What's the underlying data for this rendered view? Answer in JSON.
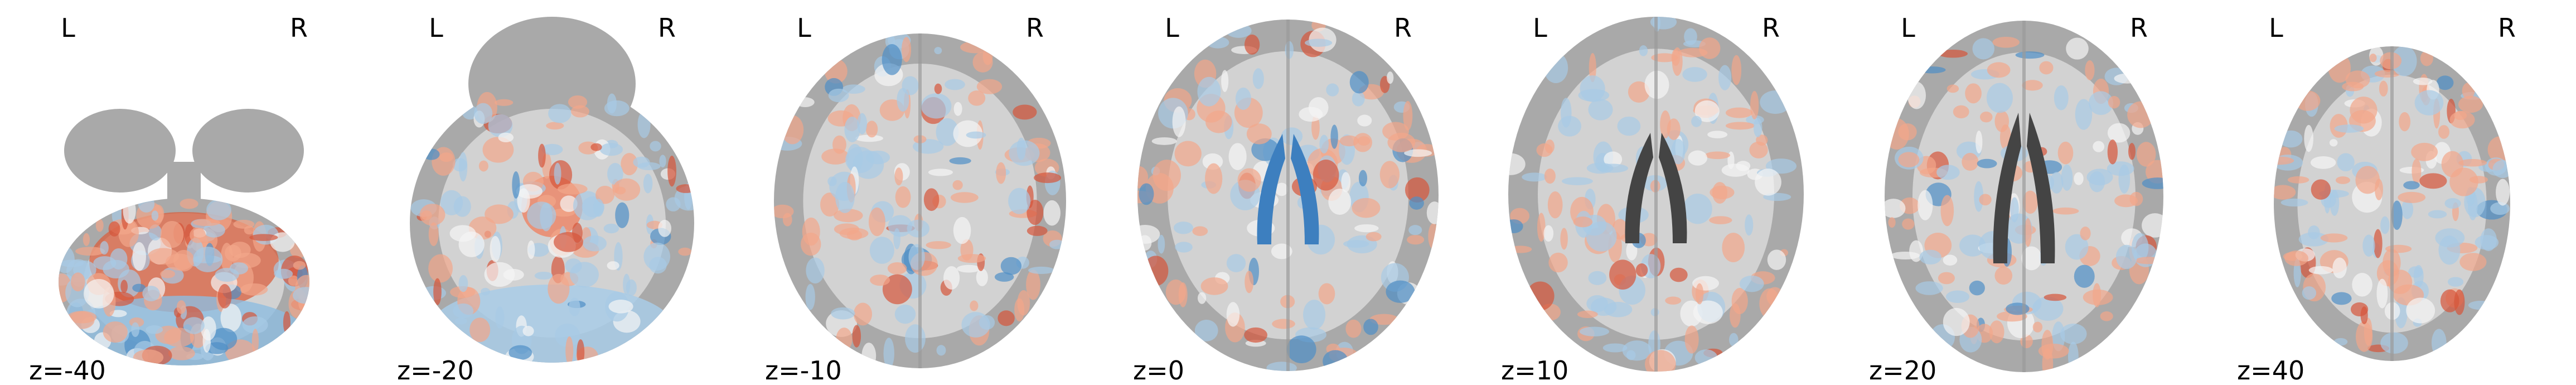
{
  "panels": [
    {
      "left": "L",
      "right": "R",
      "label": "z=-40"
    },
    {
      "left": "L",
      "right": "R",
      "label": "z=-20"
    },
    {
      "left": "L",
      "right": "R",
      "label": "z=-10"
    },
    {
      "left": "L",
      "right": "R",
      "label": "z=0"
    },
    {
      "left": "L",
      "right": "R",
      "label": "z=10"
    },
    {
      "left": "L",
      "right": "R",
      "label": "z=20"
    },
    {
      "left": "L",
      "right": "R",
      "label": "z=40"
    }
  ]
}
